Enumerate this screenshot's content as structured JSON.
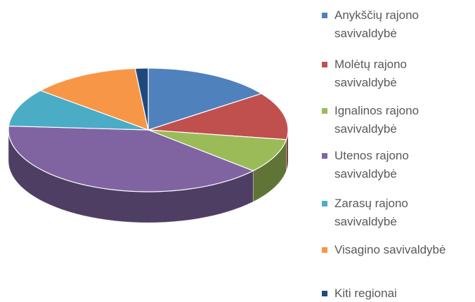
{
  "chart_data": {
    "type": "pie",
    "categories": [
      "Anykščių rajono savivaldybė",
      "Molėtų rajono savivaldybė",
      "Ignalinos rajono savivaldybė",
      "Utenos rajono savivaldybė",
      "Zarasų rajono savivaldybė",
      "Visagino savivaldybė",
      "Kiti regionai"
    ],
    "values": [
      15,
      12.5,
      9,
      39.5,
      10,
      12.5,
      1.5
    ],
    "colors": [
      "#4f81bd",
      "#c0504d",
      "#9bbb59",
      "#8064a2",
      "#4bacc6",
      "#f79646",
      "#1f497d"
    ],
    "legend": "right"
  }
}
